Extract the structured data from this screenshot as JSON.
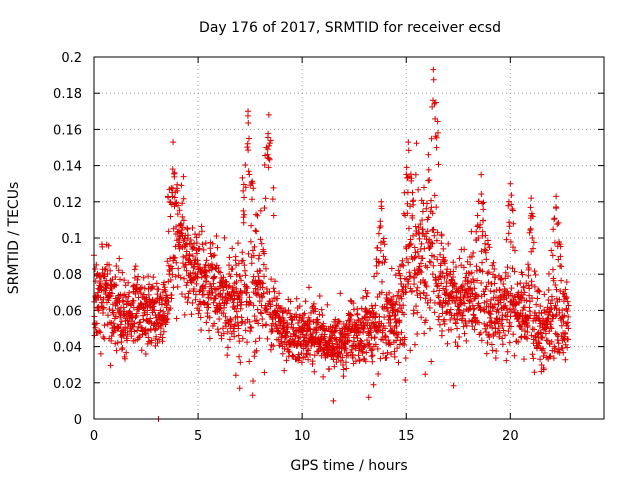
{
  "chart_data": {
    "type": "scatter",
    "title": "Day 176 of 2017, SRMTID for receiver ecsd",
    "xlabel": "GPS time / hours",
    "ylabel": "SRMTID / TECUs",
    "xlim": [
      0,
      24.5
    ],
    "ylim": [
      0,
      0.2
    ],
    "x_ticks": [
      0,
      5,
      10,
      15,
      20
    ],
    "x_tick_labels": [
      "0",
      "5",
      "10",
      "15",
      "20"
    ],
    "y_ticks": [
      0,
      0.02,
      0.04,
      0.06,
      0.08,
      0.1,
      0.12,
      0.14,
      0.16,
      0.18,
      0.2
    ],
    "y_tick_labels": [
      "0",
      "0.02",
      "0.04",
      "0.06",
      "0.08",
      "0.1",
      "0.12",
      "0.14",
      "0.16",
      "0.18",
      "0.2"
    ],
    "grid": true,
    "marker": "plus",
    "color": "#dd0000",
    "series": [
      {
        "name": "SRMTID",
        "profile_x": [
          0.0,
          0.5,
          1.0,
          1.5,
          2.0,
          2.5,
          3.0,
          3.5,
          3.8,
          4.2,
          4.6,
          5.0,
          5.5,
          6.0,
          6.5,
          7.0,
          7.3,
          7.7,
          8.0,
          8.5,
          9.0,
          9.5,
          10.0,
          10.5,
          11.0,
          11.5,
          12.0,
          12.5,
          13.0,
          13.5,
          14.0,
          14.5,
          15.0,
          15.4,
          15.8,
          16.2,
          16.6,
          17.0,
          17.5,
          18.0,
          18.5,
          19.0,
          19.5,
          20.0,
          20.5,
          21.0,
          21.5,
          22.0,
          22.5,
          22.8
        ],
        "profile_mean": [
          0.065,
          0.07,
          0.06,
          0.058,
          0.06,
          0.058,
          0.06,
          0.062,
          0.09,
          0.1,
          0.085,
          0.08,
          0.075,
          0.07,
          0.065,
          0.062,
          0.075,
          0.07,
          0.075,
          0.06,
          0.05,
          0.048,
          0.046,
          0.05,
          0.045,
          0.042,
          0.044,
          0.046,
          0.048,
          0.05,
          0.052,
          0.055,
          0.07,
          0.085,
          0.09,
          0.09,
          0.075,
          0.07,
          0.065,
          0.068,
          0.065,
          0.062,
          0.06,
          0.06,
          0.058,
          0.055,
          0.05,
          0.055,
          0.055,
          0.05
        ],
        "profile_spread": [
          0.02,
          0.022,
          0.02,
          0.018,
          0.018,
          0.016,
          0.015,
          0.016,
          0.03,
          0.025,
          0.02,
          0.02,
          0.02,
          0.02,
          0.022,
          0.03,
          0.04,
          0.035,
          0.03,
          0.02,
          0.015,
          0.014,
          0.014,
          0.016,
          0.014,
          0.013,
          0.013,
          0.015,
          0.018,
          0.018,
          0.02,
          0.02,
          0.03,
          0.035,
          0.04,
          0.045,
          0.025,
          0.02,
          0.02,
          0.025,
          0.022,
          0.02,
          0.018,
          0.02,
          0.018,
          0.02,
          0.018,
          0.022,
          0.02,
          0.016
        ],
        "peaks": [
          [
            3.8,
            0.153
          ],
          [
            7.4,
            0.17
          ],
          [
            8.4,
            0.168
          ],
          [
            13.8,
            0.12
          ],
          [
            15.1,
            0.153
          ],
          [
            16.3,
            0.193
          ],
          [
            18.6,
            0.135
          ],
          [
            20.0,
            0.13
          ],
          [
            21.0,
            0.122
          ],
          [
            22.2,
            0.123
          ]
        ],
        "outliers": [
          [
            3.1,
            0.0
          ],
          [
            13.2,
            0.012
          ],
          [
            11.5,
            0.01
          ],
          [
            7.0,
            0.017
          ]
        ]
      }
    ]
  }
}
